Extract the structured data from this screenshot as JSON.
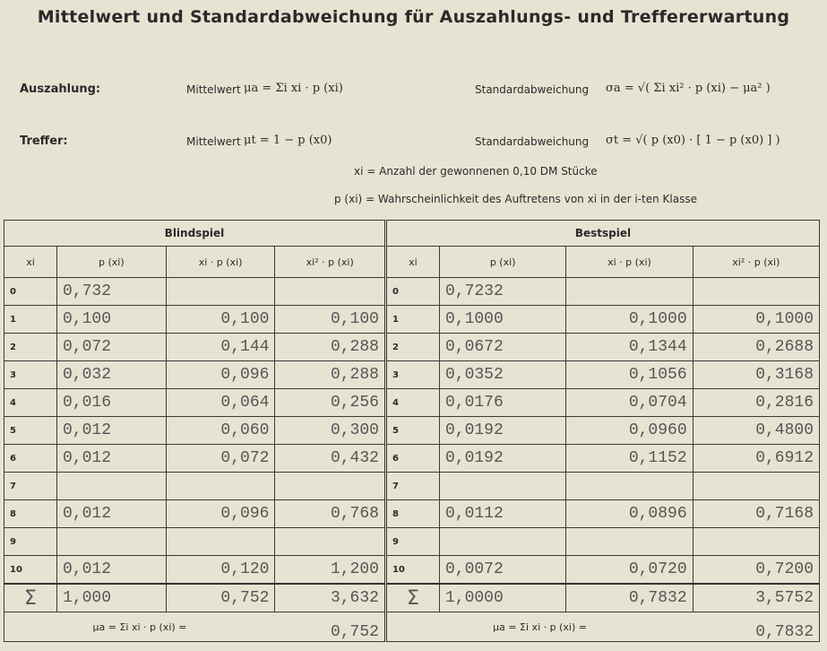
{
  "title": "Mittelwert und Standardabweichung für Auszahlungs- und Treffererwartung",
  "formulas": {
    "auszahlung": {
      "label": "Auszahlung:",
      "mean_label": "Mittelwert",
      "mean": "μa = Σi xi · p (xi)",
      "sd_label": "Standardabweichung",
      "sd": "σa = √( Σi xi² · p (xi) − μa² )"
    },
    "treffer": {
      "label": "Treffer:",
      "mean_label": "Mittelwert",
      "mean": "μt = 1 − p (x0)",
      "sd_label": "Standardabweichung",
      "sd": "σt = √( p (x0) · [ 1 − p (x0) ] )"
    },
    "note1": "xi = Anzahl der gewonnenen 0,10 DM Stücke",
    "note2": "p (xi) = Wahrscheinlichkeit des Auftretens von xi in der i-ten Klasse"
  },
  "table": {
    "groups": [
      "Blindspiel",
      "Bestspiel"
    ],
    "headers": [
      "xi",
      "p (xi)",
      "xi · p (xi)",
      "xi² · p (xi)"
    ],
    "rows": [
      {
        "x": "0",
        "b": [
          "0,732",
          "",
          ""
        ],
        "s": [
          "0,7232",
          "",
          ""
        ]
      },
      {
        "x": "1",
        "b": [
          "0,100",
          "0,100",
          "0,100"
        ],
        "s": [
          "0,1000",
          "0,1000",
          "0,1000"
        ]
      },
      {
        "x": "2",
        "b": [
          "0,072",
          "0,144",
          "0,288"
        ],
        "s": [
          "0,0672",
          "0,1344",
          "0,2688"
        ]
      },
      {
        "x": "3",
        "b": [
          "0,032",
          "0,096",
          "0,288"
        ],
        "s": [
          "0,0352",
          "0,1056",
          "0,3168"
        ]
      },
      {
        "x": "4",
        "b": [
          "0,016",
          "0,064",
          "0,256"
        ],
        "s": [
          "0,0176",
          "0,0704",
          "0,2816"
        ]
      },
      {
        "x": "5",
        "b": [
          "0,012",
          "0,060",
          "0,300"
        ],
        "s": [
          "0,0192",
          "0,0960",
          "0,4800"
        ]
      },
      {
        "x": "6",
        "b": [
          "0,012",
          "0,072",
          "0,432"
        ],
        "s": [
          "0,0192",
          "0,1152",
          "0,6912"
        ]
      },
      {
        "x": "7",
        "b": [
          "",
          "",
          ""
        ],
        "s": [
          "",
          "",
          ""
        ]
      },
      {
        "x": "8",
        "b": [
          "0,012",
          "0,096",
          "0,768"
        ],
        "s": [
          "0,0112",
          "0,0896",
          "0,7168"
        ]
      },
      {
        "x": "9",
        "b": [
          "",
          "",
          ""
        ],
        "s": [
          "",
          "",
          ""
        ]
      },
      {
        "x": "10",
        "b": [
          "0,012",
          "0,120",
          "1,200"
        ],
        "s": [
          "0,0072",
          "0,0720",
          "0,7200"
        ]
      }
    ],
    "sum_symbol": "Σ",
    "sum": {
      "b": [
        "1,000",
        "0,752",
        "3,632"
      ],
      "s": [
        "1,0000",
        "0,7832",
        "3,5752"
      ]
    },
    "mu_formula": "μa = Σi xi · p (xi) =",
    "mu": {
      "b": "0,752",
      "s": "0,7832"
    }
  }
}
